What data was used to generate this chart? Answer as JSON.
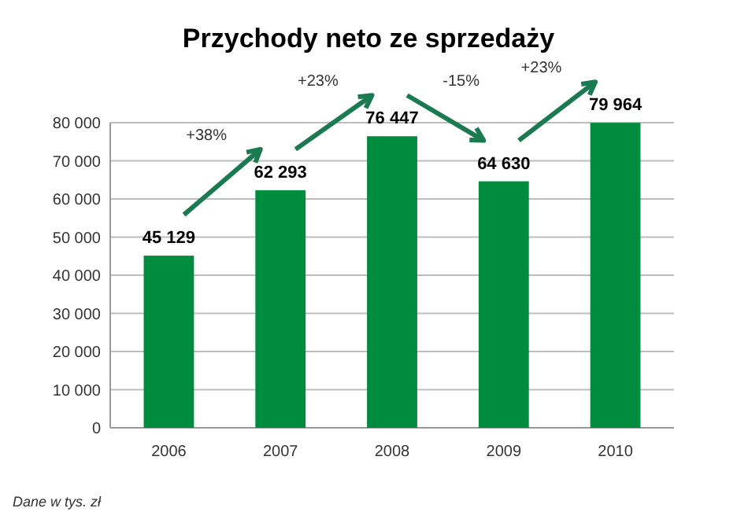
{
  "chart_data": {
    "type": "bar",
    "title": "Przychody neto ze sprzedaży",
    "categories": [
      "2006",
      "2007",
      "2008",
      "2009",
      "2010"
    ],
    "values": [
      45129,
      62293,
      76447,
      64630,
      79964
    ],
    "value_labels": [
      "45 129",
      "62 293",
      "76 447",
      "64 630",
      "79 964"
    ],
    "color": "#008c3e",
    "ylim": [
      0,
      80000
    ],
    "yticks": [
      {
        "value": 0,
        "label": "0"
      },
      {
        "value": 10000,
        "label": "10 000"
      },
      {
        "value": 20000,
        "label": "20 000"
      },
      {
        "value": 30000,
        "label": "30 000"
      },
      {
        "value": 40000,
        "label": "40 000"
      },
      {
        "value": 50000,
        "label": "50 000"
      },
      {
        "value": 60000,
        "label": "60 000"
      },
      {
        "value": 70000,
        "label": "70 000"
      },
      {
        "value": 80000,
        "label": "80 000"
      }
    ],
    "grid": "y",
    "annotations": [
      "+38%",
      "+23%",
      "-15%",
      "+23%",
      "Dane w tys. zł"
    ]
  }
}
